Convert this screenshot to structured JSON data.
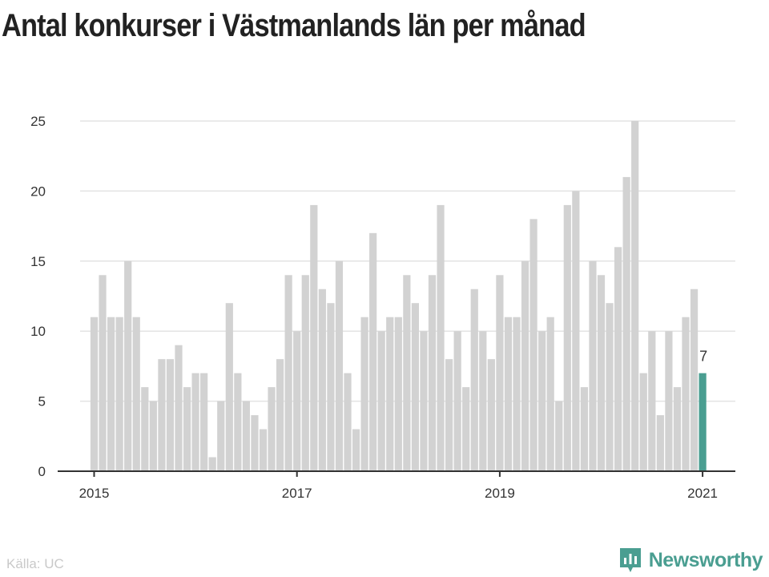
{
  "page_title": "Antal konkurser i Västmanlands län per månad",
  "source": "Källa: UC",
  "brand": {
    "name": "Newsworthy",
    "icon": "bar-chart-speech-icon"
  },
  "colors": {
    "bar": "#d2d2d2",
    "highlight": "#4a9e91",
    "grid": "#e3e3e3",
    "axis": "#333333"
  },
  "chart_data": {
    "type": "bar",
    "title": "Antal konkurser i Västmanlands län per månad",
    "xlabel": "",
    "ylabel": "",
    "ylim": [
      0,
      25
    ],
    "yticks": [
      "0",
      "5",
      "10",
      "15",
      "20",
      "25"
    ],
    "xticks": [
      {
        "label": "2015",
        "month_index": 0
      },
      {
        "label": "2017",
        "month_index": 24
      },
      {
        "label": "2019",
        "month_index": 48
      },
      {
        "label": "2021",
        "month_index": 72
      }
    ],
    "start": "2015-01",
    "values": [
      11,
      14,
      11,
      11,
      15,
      11,
      6,
      5,
      8,
      8,
      9,
      6,
      7,
      7,
      1,
      5,
      12,
      7,
      5,
      4,
      3,
      6,
      8,
      14,
      10,
      14,
      19,
      13,
      12,
      15,
      7,
      3,
      11,
      17,
      10,
      11,
      11,
      14,
      12,
      10,
      14,
      19,
      8,
      10,
      6,
      13,
      10,
      8,
      14,
      11,
      11,
      15,
      18,
      10,
      11,
      5,
      19,
      20,
      6,
      15,
      14,
      12,
      16,
      21,
      25,
      7,
      10,
      4,
      10,
      6,
      11,
      13,
      7
    ],
    "highlight_index": 72,
    "highlight_label": "7"
  }
}
